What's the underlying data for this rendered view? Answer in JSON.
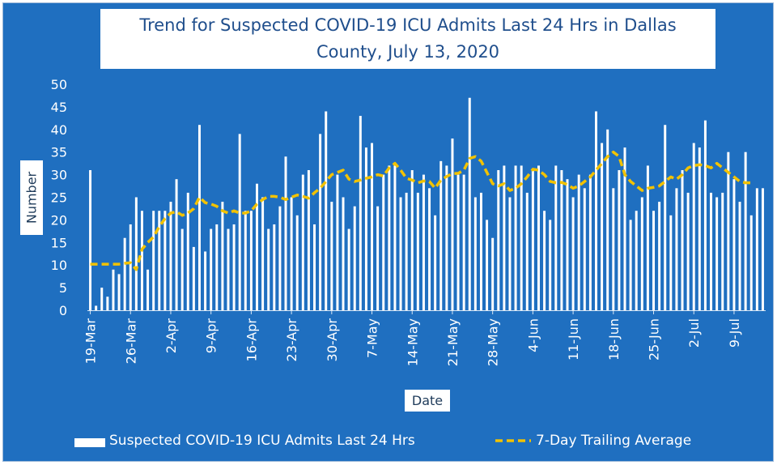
{
  "chart_data": {
    "type": "bar",
    "title_lines": [
      "Trend for Suspected COVID-19 ICU Admits Last 24 Hrs in Dallas",
      "County, July 13, 2020"
    ],
    "xlabel": "Date",
    "ylabel": "Number",
    "ylim": [
      0,
      50
    ],
    "yticks": [
      0,
      5,
      10,
      15,
      20,
      25,
      30,
      35,
      40,
      45,
      50
    ],
    "grid": false,
    "legend_position": "bottom",
    "start_date": "19-Mar",
    "tick_labels": [
      "19-Mar",
      "26-Mar",
      "2-Apr",
      "9-Apr",
      "16-Apr",
      "23-Apr",
      "30-Apr",
      "7-May",
      "14-May",
      "21-May",
      "28-May",
      "4-Jun",
      "11-Jun",
      "18-Jun",
      "25-Jun",
      "2-Jul",
      "9-Jul"
    ],
    "tick_every_days": 7,
    "series": [
      {
        "name": "Suspected COVID-19 ICU Admits Last 24 Hrs",
        "type": "bar",
        "color": "#ffffff",
        "values": [
          31,
          1,
          5,
          3,
          9,
          8,
          16,
          19,
          25,
          22,
          9,
          22,
          22,
          22,
          24,
          29,
          18,
          26,
          14,
          41,
          13,
          18,
          19,
          24,
          18,
          19,
          39,
          22,
          22,
          28,
          25,
          18,
          19,
          23,
          34,
          25,
          21,
          30,
          31,
          19,
          39,
          44,
          24,
          30,
          25,
          18,
          23,
          43,
          36,
          37,
          23,
          30,
          32,
          32,
          25,
          26,
          31,
          26,
          30,
          27,
          21,
          33,
          32,
          38,
          30,
          30,
          47,
          25,
          26,
          20,
          16,
          31,
          32,
          25,
          32,
          32,
          26,
          31,
          32,
          22,
          20,
          32,
          31,
          29,
          25,
          30,
          27,
          30,
          44,
          37,
          40,
          27,
          31,
          36,
          20,
          22,
          25,
          32,
          22,
          24,
          41,
          21,
          27,
          31,
          26,
          37,
          36,
          42,
          26,
          25,
          26,
          35,
          29,
          24,
          35,
          21,
          27,
          27
        ]
      },
      {
        "name": "7-Day Trailing Average",
        "type": "line",
        "style": "dashed",
        "color": "#f2c200",
        "values": [
          10.2,
          10.2,
          10.2,
          10.2,
          10.2,
          10.2,
          10.4,
          10.5,
          9,
          13.5,
          15,
          16.2,
          18.5,
          20.3,
          21.5,
          21.8,
          21,
          21.5,
          22.5,
          25,
          23.8,
          23.5,
          23,
          22,
          21.5,
          22,
          21.5,
          21.5,
          22,
          23.5,
          24.5,
          25.2,
          25.2,
          25,
          24.5,
          25,
          25.5,
          25.2,
          24.8,
          26,
          27,
          28.5,
          30,
          30.5,
          31,
          29,
          28.5,
          28.8,
          29.2,
          29.5,
          30,
          29.7,
          31.5,
          32.5,
          31,
          29.2,
          28.8,
          28.2,
          28.6,
          28.5,
          27,
          28.8,
          29.6,
          30.2,
          30.3,
          31,
          33.6,
          34,
          33,
          30.5,
          28,
          27.5,
          28,
          26.5,
          27,
          28,
          29.5,
          31.2,
          31,
          30,
          28.5,
          28.2,
          28.3,
          27.8,
          27,
          27.5,
          28.5,
          29.5,
          31,
          32.5,
          34,
          35,
          34,
          30,
          28.5,
          27.5,
          26.5,
          27,
          27.2,
          27.5,
          28.5,
          29.5,
          29,
          30,
          31.5,
          32,
          32.2,
          32,
          31.5,
          32.5,
          31.5,
          30.5,
          29.5,
          28.5,
          28.2,
          28.2
        ]
      }
    ]
  }
}
